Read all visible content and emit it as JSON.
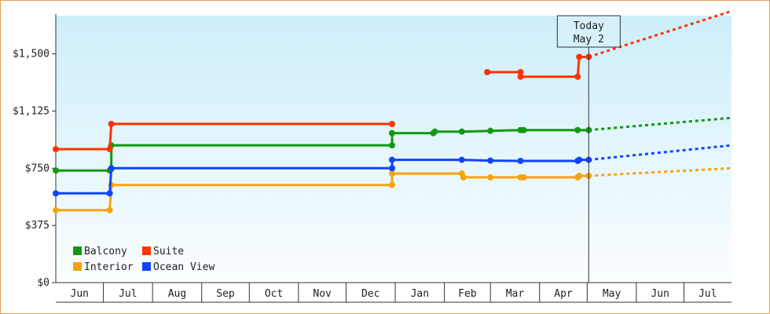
{
  "chart_data": {
    "type": "line",
    "title": "",
    "xlabel": "",
    "ylabel": "",
    "ylim": [
      0,
      1750
    ],
    "y_ticks": [
      "$0",
      "$375",
      "$750",
      "$1,125",
      "$1,500"
    ],
    "y_tick_values": [
      0,
      375,
      750,
      1125,
      1500
    ],
    "x_ticks": [
      "Jun",
      "Jul",
      "Aug",
      "Sep",
      "Oct",
      "Nov",
      "Dec",
      "Jan",
      "Feb",
      "Mar",
      "Apr",
      "May",
      "Jun",
      "Jul"
    ],
    "x_range": [
      "2015-06-01",
      "2016-07-31"
    ],
    "today_label": [
      "Today",
      "May 2"
    ],
    "today_date": "2016-05-02",
    "grid": false,
    "legend_position": "bottom-left",
    "series": [
      {
        "name": "Balcony",
        "color": "#119911",
        "points": [
          [
            "2015-06-01",
            735
          ],
          [
            "2015-07-05",
            735
          ],
          [
            "2015-07-06",
            745
          ],
          [
            "2015-07-06",
            900
          ],
          [
            "2015-12-30",
            900
          ],
          [
            "2015-12-30",
            980
          ],
          [
            "2016-01-25",
            980
          ],
          [
            "2016-01-26",
            990
          ],
          [
            "2016-02-12",
            990
          ],
          [
            "2016-03-01",
            995
          ],
          [
            "2016-03-20",
            1000
          ],
          [
            "2016-03-22",
            1000
          ],
          [
            "2016-04-25",
            1000
          ],
          [
            "2016-05-02",
            1000
          ]
        ],
        "forecast": [
          [
            "2016-05-02",
            1000
          ],
          [
            "2016-07-31",
            1080
          ]
        ]
      },
      {
        "name": "Suite",
        "color": "#ff3300",
        "points": [
          [
            "2015-06-01",
            875
          ],
          [
            "2015-07-05",
            875
          ],
          [
            "2015-07-06",
            1040
          ],
          [
            "2015-12-30",
            1040
          ]
        ],
        "points_2": [
          [
            "2016-02-28",
            1380
          ],
          [
            "2016-03-20",
            1380
          ],
          [
            "2016-03-20",
            1350
          ],
          [
            "2016-04-25",
            1350
          ],
          [
            "2016-04-26",
            1480
          ],
          [
            "2016-05-02",
            1480
          ]
        ],
        "forecast": [
          [
            "2016-05-02",
            1480
          ],
          [
            "2016-07-31",
            1780
          ]
        ]
      },
      {
        "name": "Interior",
        "color": "#f7a30f",
        "points": [
          [
            "2015-06-01",
            475
          ],
          [
            "2015-07-05",
            475
          ],
          [
            "2015-07-06",
            640
          ],
          [
            "2015-12-30",
            640
          ],
          [
            "2015-12-30",
            715
          ],
          [
            "2016-02-12",
            715
          ],
          [
            "2016-02-13",
            690
          ],
          [
            "2016-03-01",
            690
          ],
          [
            "2016-03-20",
            690
          ],
          [
            "2016-03-22",
            690
          ],
          [
            "2016-04-25",
            690
          ],
          [
            "2016-04-26",
            700
          ],
          [
            "2016-05-02",
            700
          ]
        ],
        "forecast": [
          [
            "2016-05-02",
            700
          ],
          [
            "2016-07-31",
            750
          ]
        ]
      },
      {
        "name": "Ocean View",
        "color": "#1144ff",
        "points": [
          [
            "2015-06-01",
            585
          ],
          [
            "2015-07-05",
            585
          ],
          [
            "2015-07-06",
            750
          ],
          [
            "2015-12-30",
            750
          ],
          [
            "2015-12-30",
            805
          ],
          [
            "2016-02-12",
            805
          ],
          [
            "2016-03-01",
            800
          ],
          [
            "2016-03-20",
            798
          ],
          [
            "2016-04-25",
            798
          ],
          [
            "2016-04-26",
            805
          ],
          [
            "2016-05-02",
            805
          ]
        ],
        "forecast": [
          [
            "2016-05-02",
            805
          ],
          [
            "2016-07-31",
            900
          ]
        ]
      }
    ]
  }
}
